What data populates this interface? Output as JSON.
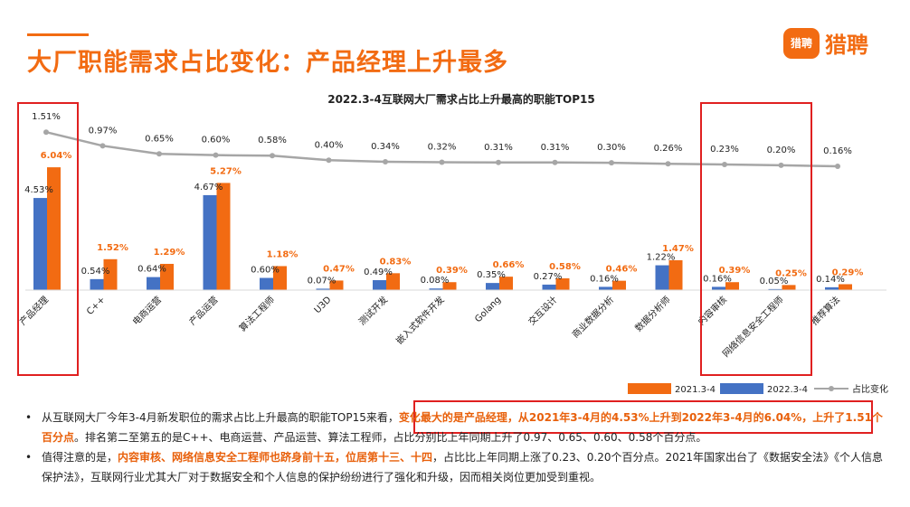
{
  "header": {
    "title": "大厂职能需求占比变化：产品经理上升最多",
    "logo_badge": "猎聘",
    "logo_text": "猎聘"
  },
  "colors": {
    "series_2021": "#4472c4",
    "series_2022": "#f26b12",
    "trend_line": "#a6a6a6",
    "accent": "#f26b12",
    "highlight_box": "#e02020"
  },
  "chart_data": {
    "type": "bar",
    "title": "2022.3-4互联网大厂需求占比上升最高的职能TOP15",
    "categories": [
      "产品经理",
      "C++",
      "电商运营",
      "产品运营",
      "算法工程师",
      "U3D",
      "测试开发",
      "嵌入式软件开发",
      "Golang",
      "交互设计",
      "商业数据分析",
      "数据分析师",
      "内容审核",
      "网络信息安全工程师",
      "推荐算法"
    ],
    "series": [
      {
        "name": "2021.3-4",
        "values": [
          4.53,
          0.54,
          0.64,
          4.67,
          0.6,
          0.07,
          0.49,
          0.08,
          0.35,
          0.27,
          0.16,
          1.22,
          0.16,
          0.05,
          0.14
        ],
        "labels": [
          "4.53%",
          "0.54%",
          "0.64%",
          "4.67%",
          "0.60%",
          "0.07%",
          "0.49%",
          "0.08%",
          "0.35%",
          "0.27%",
          "0.16%",
          "1.22%",
          "0.16%",
          "0.05%",
          "0.14%"
        ]
      },
      {
        "name": "2022.3-4",
        "values": [
          6.04,
          1.52,
          1.29,
          5.27,
          1.18,
          0.47,
          0.83,
          0.39,
          0.66,
          0.58,
          0.46,
          1.47,
          0.39,
          0.25,
          0.29
        ],
        "labels": [
          "6.04%",
          "1.52%",
          "1.29%",
          "5.27%",
          "1.18%",
          "0.47%",
          "0.83%",
          "0.39%",
          "0.66%",
          "0.58%",
          "0.46%",
          "1.47%",
          "0.39%",
          "0.25%",
          "0.29%"
        ]
      },
      {
        "name": "占比变化",
        "type": "line",
        "values": [
          1.51,
          0.97,
          0.65,
          0.6,
          0.58,
          0.4,
          0.34,
          0.32,
          0.31,
          0.31,
          0.3,
          0.26,
          0.23,
          0.2,
          0.16
        ],
        "labels": [
          "1.51%",
          "0.97%",
          "0.65%",
          "0.60%",
          "0.58%",
          "0.40%",
          "0.34%",
          "0.32%",
          "0.31%",
          "0.31%",
          "0.30%",
          "0.26%",
          "0.23%",
          "0.20%",
          "0.16%"
        ]
      }
    ],
    "legend": {
      "position": "bottom-right"
    },
    "grid": false
  },
  "bullets": {
    "b1": {
      "dot": "•",
      "pre": "从互联网大厂今年3-4月新发职位的需求占比上升最高的职能TOP15来看，",
      "hl1": "变化最大的是产品经理，从2021年3-4月的4.53%上升到2022年3-4月的6.04%，上升了1.51个百分点",
      "post": "。排名第二至第五的是C++、电商运营、产品运营、算法工程师，占比分别比上年同期上升了0.97、0.65、0.60、0.58个百分点。"
    },
    "b2": {
      "dot": "•",
      "pre": "值得注意的是，",
      "hl1": "内容审核、网络信息安全工程师也跻身前十五，位居第十三、十四",
      "post": "，占比比上年同期上涨了0.23、0.20个百分点。2021年国家出台了《数据安全法》《个人信息保护法》，互联网行业尤其大厂对于数据安全和个人信息的保护纷纷进行了强化和升级，因而相关岗位更加受到重视。"
    }
  }
}
